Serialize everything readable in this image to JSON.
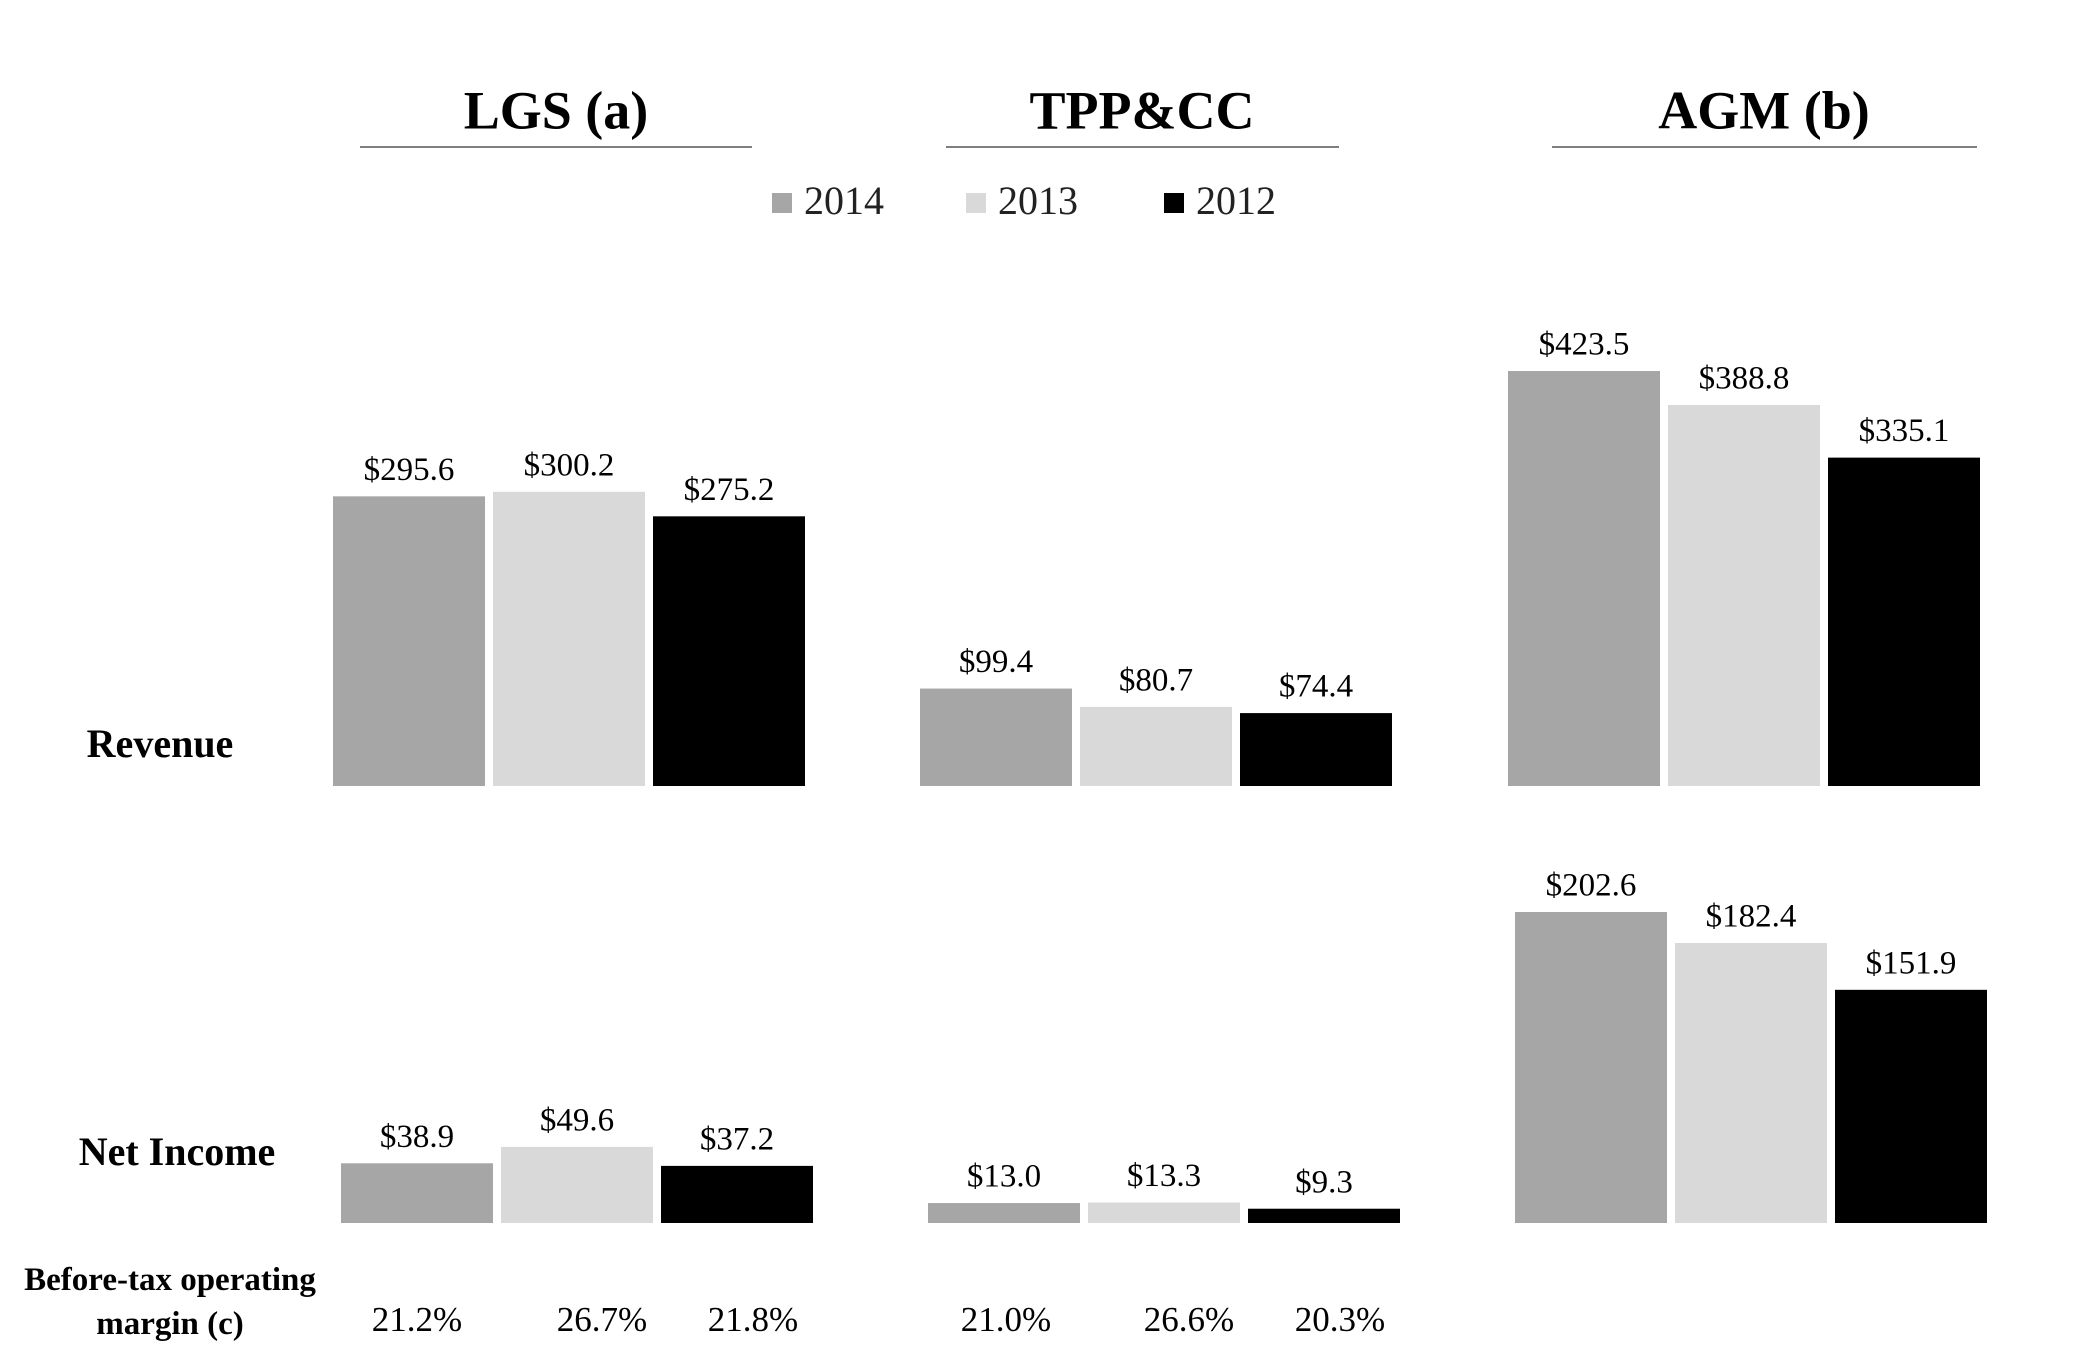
{
  "chart_data": [
    {
      "type": "bar",
      "title": "Revenue",
      "categories": [
        "LGS (a)",
        "TPP&CC",
        "AGM (b)"
      ],
      "series": [
        {
          "name": "2014",
          "color": "#a6a6a6",
          "values": [
            295.6,
            99.4,
            423.5
          ],
          "value_labels": [
            "$295.6",
            "$99.4",
            "$423.5"
          ]
        },
        {
          "name": "2013",
          "color": "#d9d9d9",
          "values": [
            300.2,
            80.7,
            388.8
          ],
          "value_labels": [
            "$300.2",
            "$80.7",
            "$388.8"
          ]
        },
        {
          "name": "2012",
          "color": "#000000",
          "values": [
            275.2,
            74.4,
            335.1
          ],
          "value_labels": [
            "$275.2",
            "$74.4",
            "$335.1"
          ]
        }
      ]
    },
    {
      "type": "bar",
      "title": "Net Income",
      "series": [
        {
          "color": "#a6a6a6",
          "values": [
            38.9,
            13.0,
            202.6
          ],
          "value_labels": [
            "$38.9",
            "$13.0",
            "$202.6"
          ]
        },
        {
          "color": "#d9d9d9",
          "values": [
            49.6,
            13.3,
            182.4
          ],
          "value_labels": [
            "$49.6",
            "$13.3",
            "$182.4"
          ]
        },
        {
          "color": "#000000",
          "values": [
            37.2,
            9.3,
            151.9
          ],
          "value_labels": [
            "$37.2",
            "$9.3",
            "$151.9"
          ]
        }
      ]
    }
  ],
  "margin": {
    "label": "Before-tax operating margin (c)",
    "rows": [
      [
        "21.2%",
        "26.7%",
        "21.8%"
      ],
      [
        "21.0%",
        "26.6%",
        "20.3%"
      ]
    ]
  }
}
